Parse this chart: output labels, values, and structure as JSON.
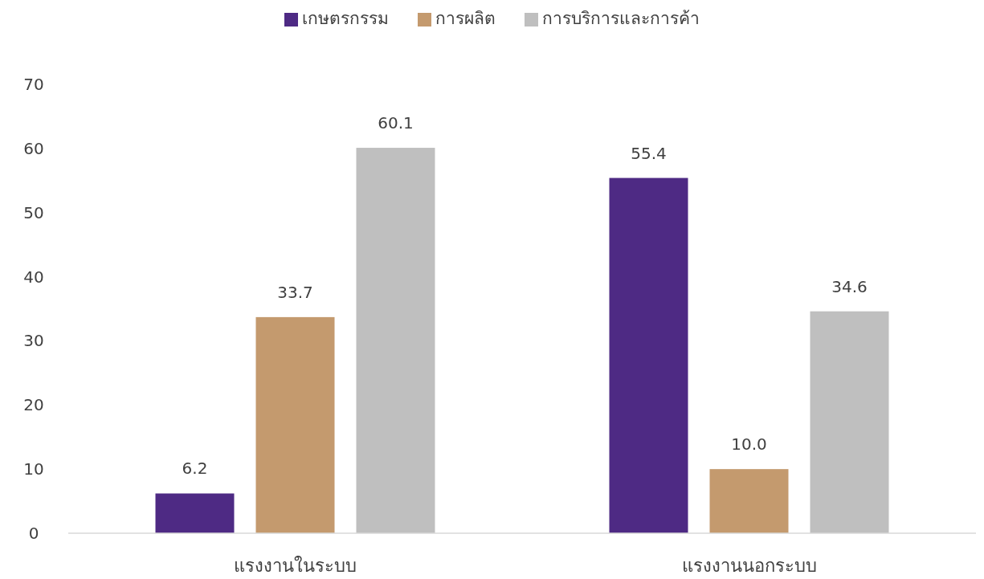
{
  "chart_data": {
    "type": "bar",
    "categories": [
      "แรงงานในระบบ",
      "แรงงานนอกระบบ"
    ],
    "series": [
      {
        "name": "เกษตรกรรม",
        "color": "#4e2a84",
        "values": [
          6.2,
          55.4
        ],
        "value_labels": [
          "6.2",
          "55.4"
        ]
      },
      {
        "name": "การผลิต",
        "color": "#c49a6e",
        "values": [
          33.7,
          10.0
        ],
        "value_labels": [
          "33.7",
          "10.0"
        ]
      },
      {
        "name": "การบริการและการค้า",
        "color": "#bfbfbf",
        "values": [
          60.1,
          34.6
        ],
        "value_labels": [
          "60.1",
          "34.6"
        ]
      }
    ],
    "ylim": [
      0,
      70
    ],
    "yticks": [
      0,
      10,
      20,
      30,
      40,
      50,
      60,
      70
    ],
    "grid": false,
    "legend": "top"
  }
}
